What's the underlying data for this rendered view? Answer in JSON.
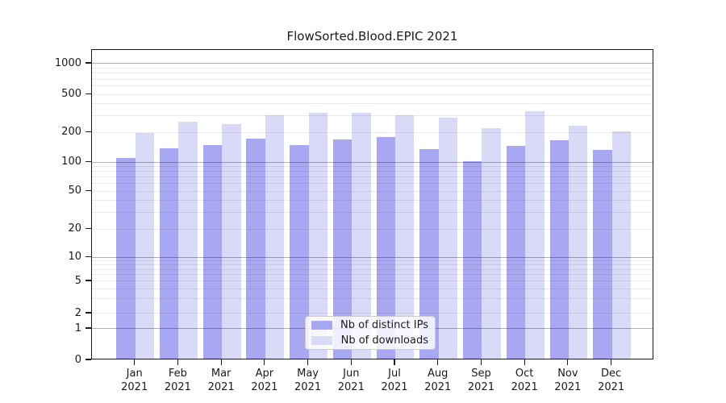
{
  "title": "FlowSorted.Blood.EPIC 2021",
  "chart_data": {
    "type": "bar",
    "title": "FlowSorted.Blood.EPIC 2021",
    "categories": [
      "Jan 2021",
      "Feb 2021",
      "Mar 2021",
      "Apr 2021",
      "May 2021",
      "Jun 2021",
      "Jul 2021",
      "Aug 2021",
      "Sep 2021",
      "Oct 2021",
      "Nov 2021",
      "Dec 2021"
    ],
    "month_labels": [
      "Jan",
      "Feb",
      "Mar",
      "Apr",
      "May",
      "Jun",
      "Jul",
      "Aug",
      "Sep",
      "Oct",
      "Nov",
      "Dec"
    ],
    "year_label": "2021",
    "series": [
      {
        "name": "Nb of distinct IPs",
        "color": "#a8a8f2",
        "values": [
          107,
          134,
          145,
          167,
          144,
          164,
          173,
          131,
          100,
          141,
          162,
          129
        ]
      },
      {
        "name": "Nb of downloads",
        "color": "#d9d9f8",
        "values": [
          190,
          250,
          235,
          295,
          310,
          312,
          290,
          276,
          216,
          320,
          228,
          200
        ]
      }
    ],
    "xlabel": "",
    "ylabel": "",
    "y_axis": {
      "scale": "symlog",
      "ticks": [
        0,
        1,
        2,
        5,
        10,
        20,
        50,
        100,
        200,
        500,
        1000
      ],
      "major_grid_values": [
        1,
        10,
        100,
        1000
      ],
      "range": [
        0,
        1500
      ]
    },
    "grid": "on",
    "legend_position": "lower center"
  }
}
